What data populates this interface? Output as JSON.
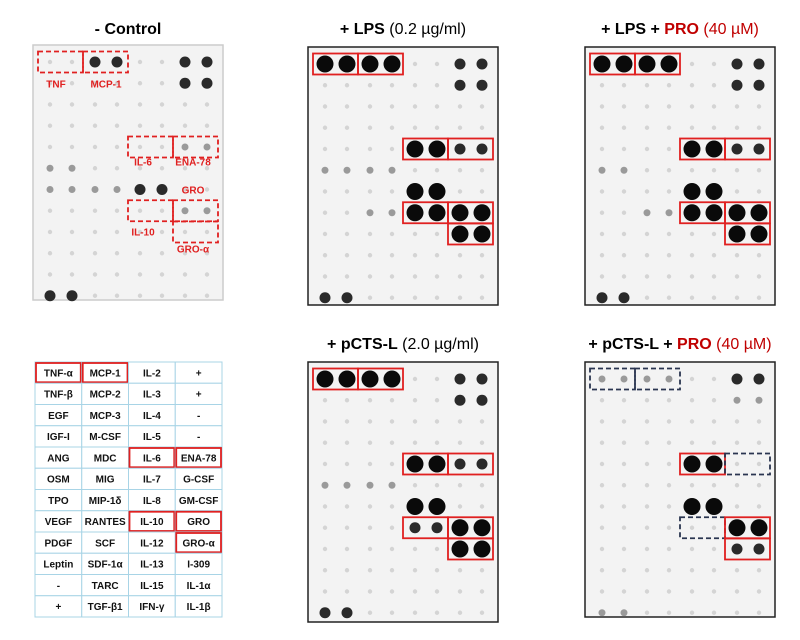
{
  "panels": [
    {
      "title": [
        "- Control"
      ],
      "labels": [
        "TNF",
        "MCP-1",
        "IL-6",
        "ENA-78",
        "GRO",
        "IL-10",
        "GRO-α"
      ]
    },
    {
      "title": [
        "+ LPS",
        " (0.2 µg/ml)"
      ]
    },
    {
      "title": [
        "+ LPS + ",
        "PRO",
        " (40 µM)"
      ]
    },
    {
      "title": [
        "+ pCTS-L",
        " (2.0 µg/ml)"
      ]
    },
    {
      "title": [
        "+ pCTS-L + ",
        "PRO",
        " (40 µM)"
      ]
    }
  ],
  "table": {
    "rows": [
      [
        "TNF-α",
        "MCP-1",
        "IL-2",
        "+"
      ],
      [
        "TNF-β",
        "MCP-2",
        "IL-3",
        "+"
      ],
      [
        "EGF",
        "MCP-3",
        "IL-4",
        "-"
      ],
      [
        "IGF-I",
        "M-CSF",
        "IL-5",
        "-"
      ],
      [
        "ANG",
        "MDC",
        "IL-6",
        "ENA-78"
      ],
      [
        "OSM",
        "MIG",
        "IL-7",
        "G-CSF"
      ],
      [
        "TPO",
        "MIP-1δ",
        "IL-8",
        "GM-CSF"
      ],
      [
        "VEGF",
        "RANTES",
        "IL-10",
        "GRO"
      ],
      [
        "PDGF",
        "SCF",
        "IL-12",
        "GRO-α"
      ],
      [
        "Leptin",
        "SDF-1α",
        "IL-13",
        "I-309"
      ],
      [
        "-",
        "TARC",
        "IL-15",
        "IL-1α"
      ],
      [
        "+",
        "TGF-β1",
        "IFN-γ",
        "IL-1β"
      ]
    ]
  }
}
